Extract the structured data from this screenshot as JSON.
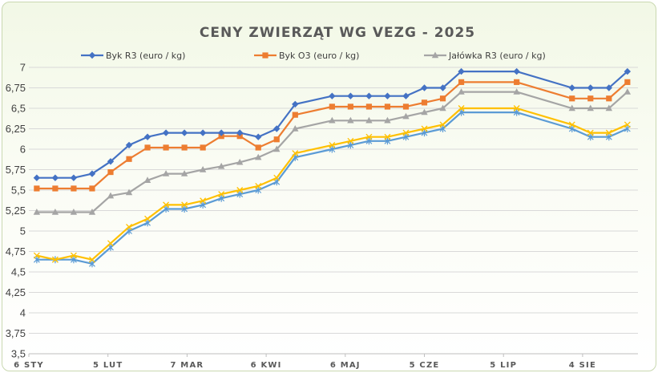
{
  "chart_data": {
    "type": "line",
    "title": "CENY ZWIERZĄT WG VEZG - 2025",
    "xlabel": "",
    "ylabel": "",
    "ylim": [
      3.5,
      7
    ],
    "yticks": [
      "3,5",
      "3,75",
      "4",
      "4,25",
      "4,5",
      "4,75",
      "5",
      "5,25",
      "5,5",
      "5,75",
      "6",
      "6,25",
      "6,5",
      "6,75",
      "7"
    ],
    "xlim": [
      "2025-01-06",
      "2025-08-25"
    ],
    "xticks": [
      {
        "date": "2025-01-06",
        "label": "6 STY"
      },
      {
        "date": "2025-02-05",
        "label": "5 LUT"
      },
      {
        "date": "2025-03-07",
        "label": "7 MAR"
      },
      {
        "date": "2025-04-06",
        "label": "6 KWI"
      },
      {
        "date": "2025-05-06",
        "label": "6 MAJ"
      },
      {
        "date": "2025-06-05",
        "label": "5 CZE"
      },
      {
        "date": "2025-07-05",
        "label": "5 LIP"
      },
      {
        "date": "2025-08-04",
        "label": "4 SIE"
      }
    ],
    "legend_position": "top",
    "grid": true,
    "series": [
      {
        "name": "Byk R3 (euro / kg)",
        "color": "#4472c4",
        "marker": "diamond",
        "dates": [
          "2025-01-09",
          "2025-01-16",
          "2025-01-23",
          "2025-01-30",
          "2025-02-06",
          "2025-02-13",
          "2025-02-20",
          "2025-02-27",
          "2025-03-06",
          "2025-03-13",
          "2025-03-20",
          "2025-03-27",
          "2025-04-03",
          "2025-04-10",
          "2025-04-17",
          "2025-05-01",
          "2025-05-08",
          "2025-05-15",
          "2025-05-22",
          "2025-05-29",
          "2025-06-05",
          "2025-06-12",
          "2025-06-19",
          "2025-07-10",
          "2025-07-31",
          "2025-08-07",
          "2025-08-14",
          "2025-08-21"
        ],
        "values": [
          5.65,
          5.65,
          5.65,
          5.7,
          5.85,
          6.05,
          6.15,
          6.2,
          6.2,
          6.2,
          6.2,
          6.2,
          6.15,
          6.25,
          6.55,
          6.65,
          6.65,
          6.65,
          6.65,
          6.65,
          6.75,
          6.75,
          6.95,
          6.95,
          6.75,
          6.75,
          6.75,
          6.95
        ]
      },
      {
        "name": "Byk O3 (euro / kg)",
        "color": "#ed7d31",
        "marker": "square",
        "dates": [
          "2025-01-09",
          "2025-01-16",
          "2025-01-23",
          "2025-01-30",
          "2025-02-06",
          "2025-02-13",
          "2025-02-20",
          "2025-02-27",
          "2025-03-06",
          "2025-03-13",
          "2025-03-20",
          "2025-03-27",
          "2025-04-03",
          "2025-04-10",
          "2025-04-17",
          "2025-05-01",
          "2025-05-08",
          "2025-05-15",
          "2025-05-22",
          "2025-05-29",
          "2025-06-05",
          "2025-06-12",
          "2025-06-19",
          "2025-07-10",
          "2025-07-31",
          "2025-08-07",
          "2025-08-14",
          "2025-08-21"
        ],
        "values": [
          5.52,
          5.52,
          5.52,
          5.52,
          5.72,
          5.88,
          6.02,
          6.02,
          6.02,
          6.02,
          6.16,
          6.16,
          6.02,
          6.12,
          6.42,
          6.52,
          6.52,
          6.52,
          6.52,
          6.52,
          6.57,
          6.62,
          6.82,
          6.82,
          6.62,
          6.62,
          6.62,
          6.82
        ]
      },
      {
        "name": "Jałówka R3 (euro / kg)",
        "color": "#a5a5a5",
        "marker": "triangle",
        "dates": [
          "2025-01-09",
          "2025-01-16",
          "2025-01-23",
          "2025-01-30",
          "2025-02-06",
          "2025-02-13",
          "2025-02-20",
          "2025-02-27",
          "2025-03-06",
          "2025-03-13",
          "2025-03-20",
          "2025-03-27",
          "2025-04-03",
          "2025-04-10",
          "2025-04-17",
          "2025-05-01",
          "2025-05-08",
          "2025-05-15",
          "2025-05-22",
          "2025-05-29",
          "2025-06-05",
          "2025-06-12",
          "2025-06-19",
          "2025-07-10",
          "2025-07-31",
          "2025-08-07",
          "2025-08-14",
          "2025-08-21"
        ],
        "values": [
          5.23,
          5.23,
          5.23,
          5.23,
          5.43,
          5.47,
          5.62,
          5.7,
          5.7,
          5.75,
          5.79,
          5.84,
          5.9,
          6.0,
          6.25,
          6.35,
          6.35,
          6.35,
          6.35,
          6.4,
          6.45,
          6.5,
          6.7,
          6.7,
          6.5,
          6.5,
          6.5,
          6.7
        ]
      },
      {
        "name": "",
        "color": "#ffc000",
        "marker": "x",
        "dates": [
          "2025-01-09",
          "2025-01-16",
          "2025-01-23",
          "2025-01-30",
          "2025-02-06",
          "2025-02-13",
          "2025-02-20",
          "2025-02-27",
          "2025-03-06",
          "2025-03-13",
          "2025-03-20",
          "2025-03-27",
          "2025-04-03",
          "2025-04-10",
          "2025-04-17",
          "2025-05-01",
          "2025-05-08",
          "2025-05-15",
          "2025-05-22",
          "2025-05-29",
          "2025-06-05",
          "2025-06-12",
          "2025-06-19",
          "2025-07-10",
          "2025-07-31",
          "2025-08-07",
          "2025-08-14",
          "2025-08-21"
        ],
        "values": [
          4.7,
          4.65,
          4.7,
          4.65,
          4.85,
          5.05,
          5.15,
          5.32,
          5.32,
          5.37,
          5.45,
          5.5,
          5.55,
          5.65,
          5.95,
          6.05,
          6.1,
          6.15,
          6.15,
          6.2,
          6.25,
          6.3,
          6.5,
          6.5,
          6.3,
          6.2,
          6.2,
          6.3
        ]
      },
      {
        "name": "",
        "color": "#5b9bd5",
        "marker": "star",
        "dates": [
          "2025-01-09",
          "2025-01-16",
          "2025-01-23",
          "2025-01-30",
          "2025-02-06",
          "2025-02-13",
          "2025-02-20",
          "2025-02-27",
          "2025-03-06",
          "2025-03-13",
          "2025-03-20",
          "2025-03-27",
          "2025-04-03",
          "2025-04-10",
          "2025-04-17",
          "2025-05-01",
          "2025-05-08",
          "2025-05-15",
          "2025-05-22",
          "2025-05-29",
          "2025-06-05",
          "2025-06-12",
          "2025-06-19",
          "2025-07-10",
          "2025-07-31",
          "2025-08-07",
          "2025-08-14",
          "2025-08-21"
        ],
        "values": [
          4.65,
          4.65,
          4.65,
          4.6,
          4.8,
          5.0,
          5.1,
          5.27,
          5.27,
          5.32,
          5.4,
          5.45,
          5.5,
          5.6,
          5.9,
          6.0,
          6.05,
          6.1,
          6.1,
          6.15,
          6.2,
          6.25,
          6.45,
          6.45,
          6.25,
          6.15,
          6.15,
          6.25
        ]
      }
    ]
  }
}
